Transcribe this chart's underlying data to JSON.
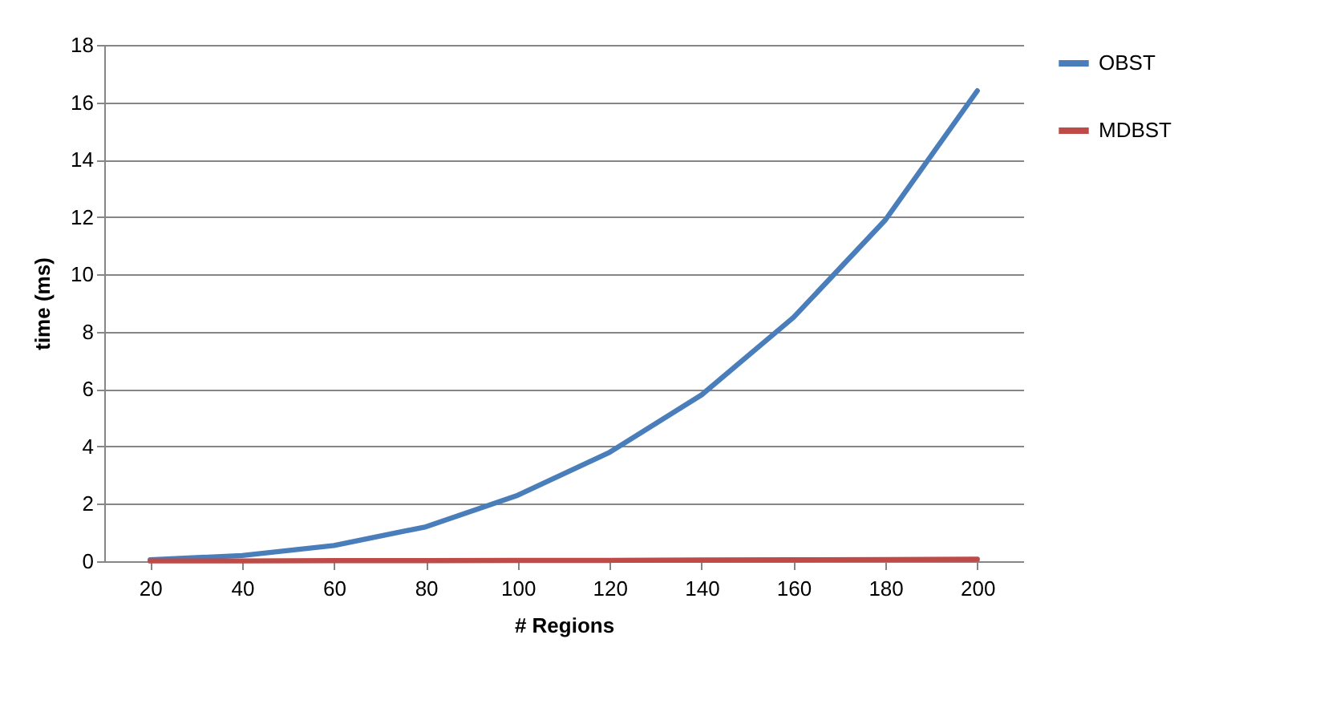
{
  "chart_data": {
    "type": "line",
    "xlabel": "# Regions",
    "ylabel": "time  (ms)",
    "categories": [
      "20",
      "40",
      "60",
      "80",
      "100",
      "120",
      "140",
      "160",
      "180",
      "200"
    ],
    "series": [
      {
        "name": "OBST",
        "color": "#4a7ebb",
        "values": [
          0.05,
          0.2,
          0.55,
          1.2,
          2.3,
          3.8,
          5.8,
          8.5,
          11.9,
          16.4
        ]
      },
      {
        "name": "MDBST",
        "color": "#be4b48",
        "values": [
          0.01,
          0.01,
          0.02,
          0.02,
          0.03,
          0.03,
          0.04,
          0.05,
          0.06,
          0.07
        ]
      }
    ],
    "ylim": [
      0,
      18
    ],
    "yticks": [
      0,
      2,
      4,
      6,
      8,
      10,
      12,
      14,
      16,
      18
    ],
    "grid": "y",
    "legend": "right",
    "marker": "none",
    "line_style": "solid"
  }
}
